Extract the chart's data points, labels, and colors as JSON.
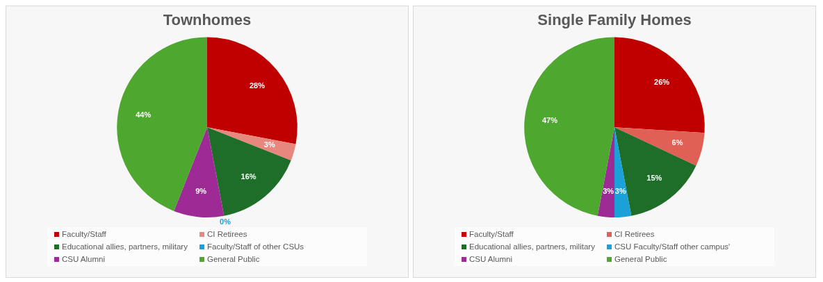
{
  "chart_data": [
    {
      "type": "pie",
      "title": "Townhomes",
      "categories": [
        "Faculty/Staff",
        "CI Retirees",
        "Educational allies, partners, military",
        "Faculty/Staff of other CSUs",
        "CSU Alumni",
        "General Public"
      ],
      "values": [
        28,
        3,
        16,
        0,
        9,
        44
      ],
      "value_labels": [
        "28%",
        "3%",
        "16%",
        "0%",
        "9%",
        "44%"
      ],
      "colors": [
        "#c00000",
        "#e8877d",
        "#1e6e2a",
        "#1ba1d8",
        "#9e2a96",
        "#4ea72e"
      ],
      "legend": "bottom"
    },
    {
      "type": "pie",
      "title": "Single Family Homes",
      "categories": [
        "Faculty/Staff",
        "CI Retirees",
        "Educational allies, partners, military",
        "CSU Faculty/Staff other campus'",
        "CSU Alumni",
        "General Public"
      ],
      "values": [
        26,
        6,
        15,
        3,
        3,
        47
      ],
      "value_labels": [
        "26%",
        "6%",
        "15%",
        "3%",
        "3%",
        "47%"
      ],
      "colors": [
        "#c00000",
        "#e06055",
        "#1e6e2a",
        "#1ba1d8",
        "#9e2a96",
        "#4ea72e"
      ],
      "legend": "bottom"
    }
  ]
}
